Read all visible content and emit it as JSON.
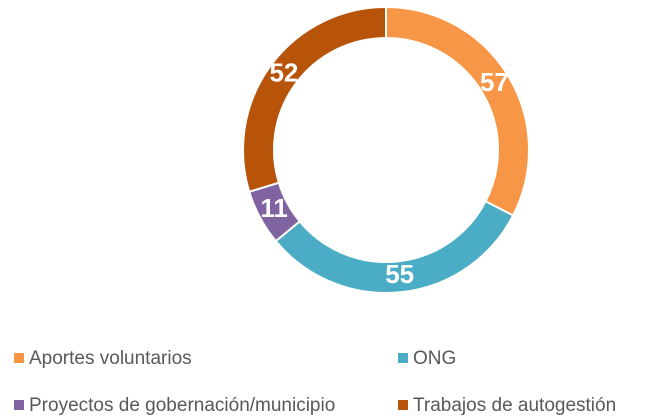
{
  "chart_data": {
    "type": "donut",
    "categories": [
      "Aportes voluntarios",
      "ONG",
      "Proyectos de gobernación/municipio",
      "Trabajos de autogestión"
    ],
    "values": [
      57,
      55,
      11,
      52
    ],
    "colors": [
      "#F79646",
      "#4BACC6",
      "#8064A2",
      "#B8540A"
    ],
    "legend": "bottom"
  }
}
